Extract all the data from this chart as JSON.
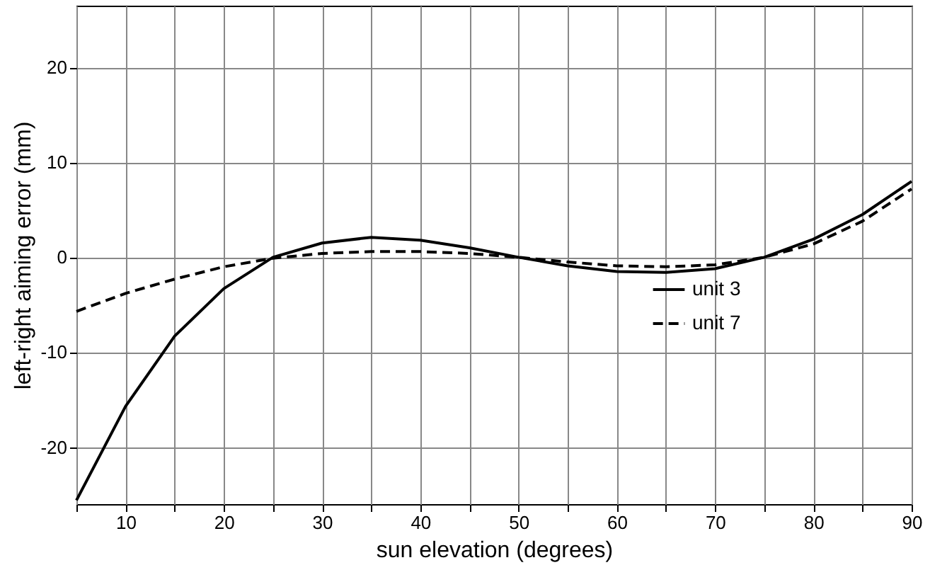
{
  "chart_data": {
    "type": "line",
    "xlabel": "sun elevation (degrees)",
    "ylabel": "left-right aiming error (mm)",
    "x": [
      5,
      10,
      15,
      20,
      25,
      30,
      35,
      40,
      45,
      50,
      55,
      60,
      65,
      70,
      75,
      80,
      85,
      90
    ],
    "series": [
      {
        "name": "unit 3",
        "color": "#000000",
        "line_style": "solid",
        "values": [
          -25.6,
          -15.7,
          -8.3,
          -3.3,
          0,
          1.5,
          2.1,
          1.8,
          1.0,
          0,
          -0.9,
          -1.5,
          -1.6,
          -1.2,
          0,
          1.9,
          4.5,
          8.0
        ]
      },
      {
        "name": "unit 7",
        "color": "#000000",
        "line_style": "dashed",
        "values": [
          -5.7,
          -3.8,
          -2.3,
          -1.0,
          -0.1,
          0.4,
          0.6,
          0.6,
          0.4,
          0,
          -0.5,
          -0.9,
          -1.0,
          -0.8,
          0,
          1.4,
          3.8,
          7.2
        ]
      }
    ],
    "xlim": [
      5,
      90
    ],
    "ylim": [
      -26,
      26.5
    ],
    "xticks": [
      {
        "value": 5,
        "label": null
      },
      10,
      {
        "value": 15,
        "label": null
      },
      20,
      {
        "value": 25,
        "label": null
      },
      30,
      {
        "value": 35,
        "label": null
      },
      40,
      {
        "value": 45,
        "label": null
      },
      50,
      {
        "value": 55,
        "label": null
      },
      60,
      {
        "value": 65,
        "label": null
      },
      70,
      {
        "value": 75,
        "label": null
      },
      80,
      {
        "value": 85,
        "label": null
      },
      90
    ],
    "yticks": [
      -20,
      -10,
      0,
      10,
      20
    ],
    "grid": true,
    "legend": "bottom right",
    "marker": "none"
  }
}
